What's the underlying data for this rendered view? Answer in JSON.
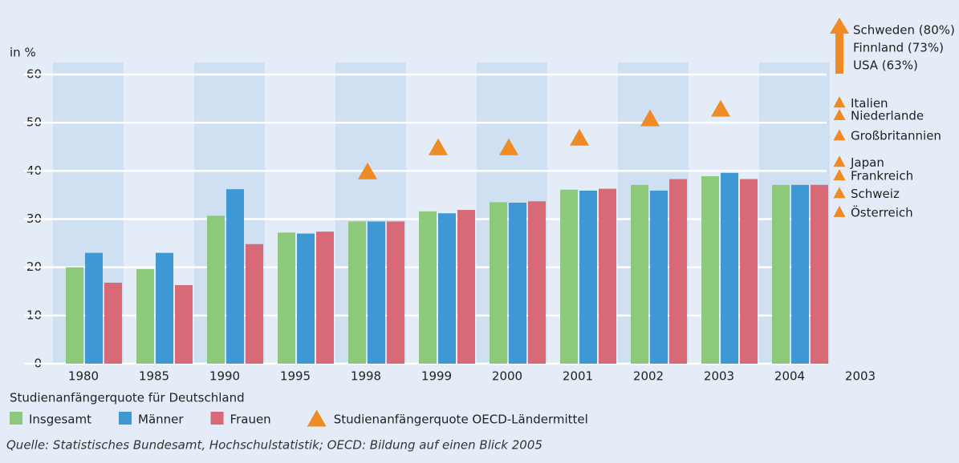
{
  "chart_data": {
    "type": "bar",
    "ylabel": "in %",
    "categories": [
      "1980",
      "1985",
      "1990",
      "1995",
      "1998",
      "1999",
      "2000",
      "2001",
      "2002",
      "2003",
      "2004",
      "2003"
    ],
    "series": [
      {
        "name": "Insgesamt",
        "color": "#8cc97a",
        "values": [
          20,
          19.6,
          30.7,
          27.2,
          29.5,
          31.6,
          33.5,
          36.1,
          37.1,
          38.9,
          37.1,
          null
        ]
      },
      {
        "name": "Männer",
        "color": "#3d98d4",
        "values": [
          23,
          23,
          36.2,
          27,
          29.5,
          31.2,
          33.4,
          35.9,
          35.9,
          39.6,
          37.1,
          null
        ]
      },
      {
        "name": "Frauen",
        "color": "#d86a78",
        "values": [
          16.8,
          16.3,
          24.8,
          27.4,
          29.5,
          31.9,
          33.7,
          36.3,
          38.3,
          38.3,
          37.1,
          null
        ]
      },
      {
        "name": "Studienanfängerquote OECD-Ländermittel",
        "color": "#f08a24",
        "marker": "triangle",
        "values": [
          null,
          null,
          null,
          null,
          40,
          45,
          45,
          47,
          51,
          53,
          null,
          null
        ]
      }
    ],
    "legend_title": "Studienanfängerquote für Deutschland",
    "country_points": [
      {
        "label": "Italien",
        "value": 54.3
      },
      {
        "label": "Niederlande",
        "value": 51.7
      },
      {
        "label": "Großbritannien",
        "value": 47.5
      },
      {
        "label": "Japan",
        "value": 42
      },
      {
        "label": "Frankreich",
        "value": 39.2
      },
      {
        "label": "Schweiz",
        "value": 35.5
      },
      {
        "label": "Österreich",
        "value": 31.6
      }
    ],
    "offscale_points": [
      {
        "label": "Schweden (80%)",
        "value": 80
      },
      {
        "label": "Finnland (73%)",
        "value": 73
      },
      {
        "label": "USA (63%)",
        "value": 63
      }
    ],
    "ylim": [
      0,
      60
    ],
    "yticks": [
      0,
      10,
      20,
      30,
      40,
      50,
      60
    ],
    "grid": true,
    "source": "Quelle: Statistisches Bundesamt, Hochschulstatistik; OECD: Bildung auf einen Blick 2005"
  }
}
